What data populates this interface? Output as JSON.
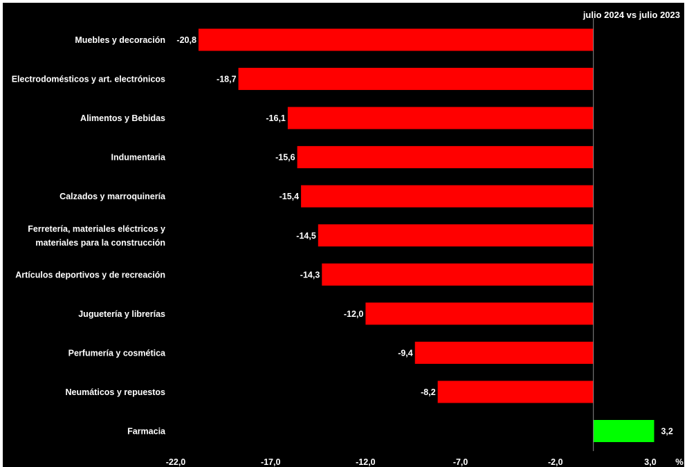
{
  "chart_data": {
    "type": "bar",
    "orientation": "horizontal",
    "title": "julio 2024 vs julio 2023",
    "unit_label": "%",
    "categories": [
      [
        "Muebles y decoración"
      ],
      [
        "Electrodomésticos y art. electrónicos"
      ],
      [
        "Alimentos y Bebidas"
      ],
      [
        "Indumentaria"
      ],
      [
        "Calzados y marroquinería"
      ],
      [
        "Ferretería, materiales eléctricos y",
        "materiales para la construcción"
      ],
      [
        "Artículos deportivos y de recreación"
      ],
      [
        "Juguetería y librerías"
      ],
      [
        "Perfumería y cosmética"
      ],
      [
        "Neumáticos y repuestos"
      ],
      [
        "Farmacia"
      ]
    ],
    "values": [
      -20.8,
      -18.7,
      -16.1,
      -15.6,
      -15.4,
      -14.5,
      -14.3,
      -12.0,
      -9.4,
      -8.2,
      3.2
    ],
    "value_labels": [
      "-20,8",
      "-18,7",
      "-16,1",
      "-15,6",
      "-15,4",
      "-14,5",
      "-14,3",
      "-12,0",
      "-9,4",
      "-8,2",
      "3,2"
    ],
    "xlim": [
      -22,
      3
    ],
    "x_ticks": [
      -22,
      -17,
      -12,
      -7,
      -2,
      3
    ],
    "x_tick_labels": [
      "-22,0",
      "-17,0",
      "-12,0",
      "-7,0",
      "-2,0",
      "3,0"
    ],
    "negative_color": "#ff0000",
    "positive_color": "#00ff00",
    "background_color": "#000000",
    "text_color": "#ffffff",
    "grid": false,
    "legend": "none"
  }
}
